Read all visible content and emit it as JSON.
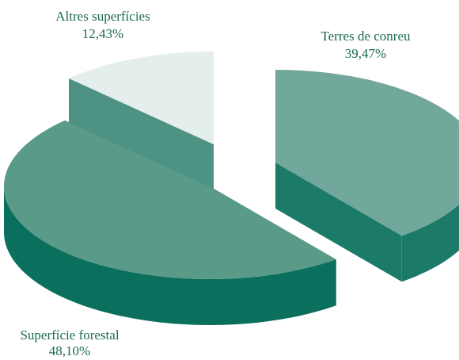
{
  "chart_data": {
    "type": "pie3d",
    "categories": [
      "Terres de conreu",
      "Superfície forestal",
      "Altres superfícies"
    ],
    "values": [
      39.47,
      48.1,
      12.43
    ],
    "value_labels": [
      "39,47%",
      "48,10%",
      "12,43%"
    ],
    "colors": [
      "#72a79c",
      "#5a9a88",
      "#e4eeec"
    ],
    "side_colors": [
      "#1b7a68",
      "#0b6f5e",
      "#4d9282"
    ]
  }
}
